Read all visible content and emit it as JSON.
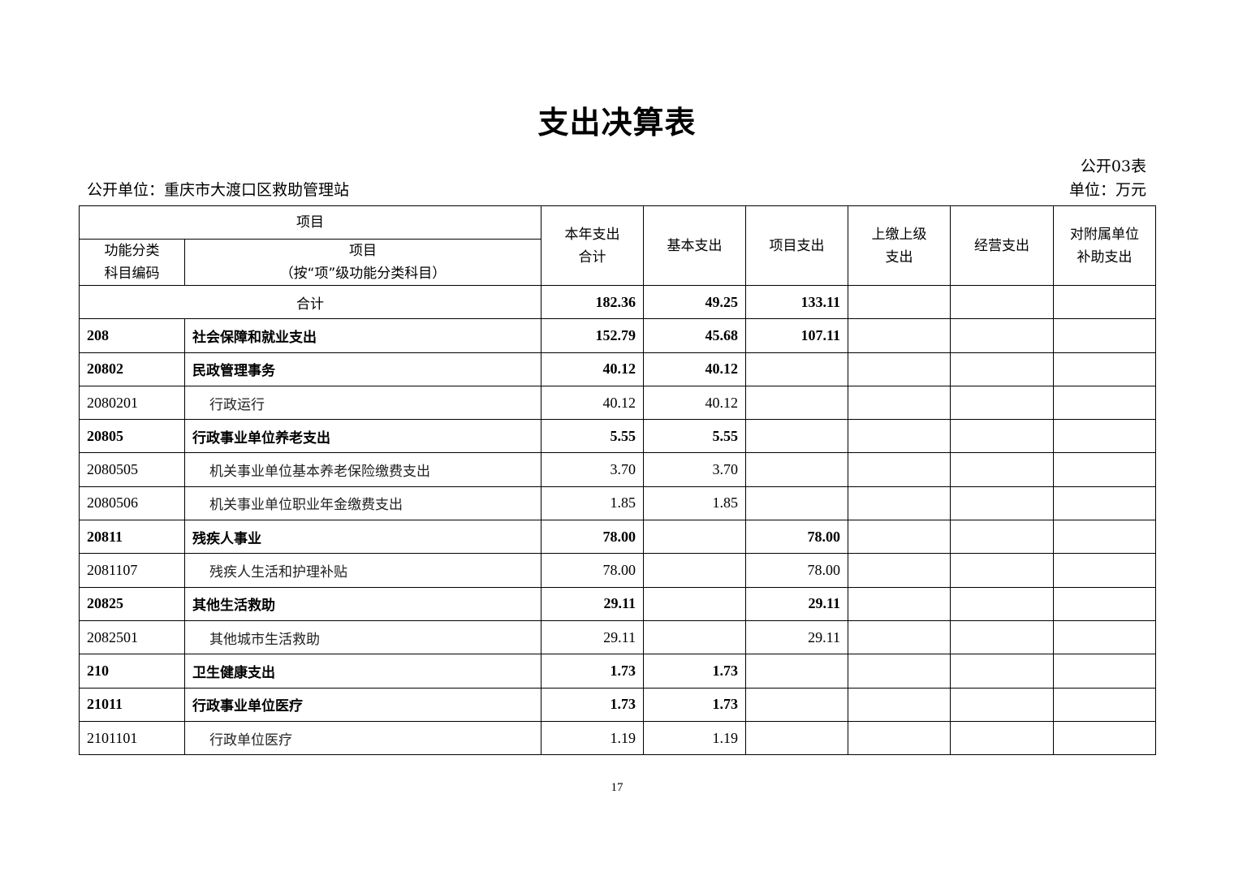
{
  "title": "支出决算表",
  "form_number": "公开03表",
  "unit_name": "公开单位：重庆市大渡口区救助管理站",
  "currency_unit": "单位：万元",
  "header": {
    "item": "项目",
    "code_col": [
      "功能分类",
      "科目编码"
    ],
    "name_col": [
      "项目",
      "（按“项”级功能分类科目）"
    ],
    "total": [
      "本年支出",
      "合计"
    ],
    "basic": "基本支出",
    "project": "项目支出",
    "upper": [
      "上缴上级",
      "支出"
    ],
    "business": "经营支出",
    "subsidy": [
      "对附属单位",
      "补助支出"
    ]
  },
  "total_row": {
    "label": "合计",
    "total": "182.36",
    "basic": "49.25",
    "project": "133.11",
    "upper": "",
    "business": "",
    "subsidy": ""
  },
  "rows": [
    {
      "code": "208",
      "name": "社会保障和就业支出",
      "total": "152.79",
      "basic": "45.68",
      "project": "107.11",
      "upper": "",
      "business": "",
      "subsidy": "",
      "bold": true
    },
    {
      "code": "20802",
      "name": "民政管理事务",
      "total": "40.12",
      "basic": "40.12",
      "project": "",
      "upper": "",
      "business": "",
      "subsidy": "",
      "bold": true
    },
    {
      "code": "2080201",
      "name": "行政运行",
      "total": "40.12",
      "basic": "40.12",
      "project": "",
      "upper": "",
      "business": "",
      "subsidy": "",
      "bold": false
    },
    {
      "code": "20805",
      "name": "行政事业单位养老支出",
      "total": "5.55",
      "basic": "5.55",
      "project": "",
      "upper": "",
      "business": "",
      "subsidy": "",
      "bold": true
    },
    {
      "code": "2080505",
      "name": "机关事业单位基本养老保险缴费支出",
      "total": "3.70",
      "basic": "3.70",
      "project": "",
      "upper": "",
      "business": "",
      "subsidy": "",
      "bold": false
    },
    {
      "code": "2080506",
      "name": "机关事业单位职业年金缴费支出",
      "total": "1.85",
      "basic": "1.85",
      "project": "",
      "upper": "",
      "business": "",
      "subsidy": "",
      "bold": false
    },
    {
      "code": "20811",
      "name": "残疾人事业",
      "total": "78.00",
      "basic": "",
      "project": "78.00",
      "upper": "",
      "business": "",
      "subsidy": "",
      "bold": true
    },
    {
      "code": "2081107",
      "name": "残疾人生活和护理补贴",
      "total": "78.00",
      "basic": "",
      "project": "78.00",
      "upper": "",
      "business": "",
      "subsidy": "",
      "bold": false
    },
    {
      "code": "20825",
      "name": "其他生活救助",
      "total": "29.11",
      "basic": "",
      "project": "29.11",
      "upper": "",
      "business": "",
      "subsidy": "",
      "bold": true
    },
    {
      "code": "2082501",
      "name": "其他城市生活救助",
      "total": "29.11",
      "basic": "",
      "project": "29.11",
      "upper": "",
      "business": "",
      "subsidy": "",
      "bold": false
    },
    {
      "code": "210",
      "name": "卫生健康支出",
      "total": "1.73",
      "basic": "1.73",
      "project": "",
      "upper": "",
      "business": "",
      "subsidy": "",
      "bold": true
    },
    {
      "code": "21011",
      "name": "行政事业单位医疗",
      "total": "1.73",
      "basic": "1.73",
      "project": "",
      "upper": "",
      "business": "",
      "subsidy": "",
      "bold": true
    },
    {
      "code": "2101101",
      "name": "行政单位医疗",
      "total": "1.19",
      "basic": "1.19",
      "project": "",
      "upper": "",
      "business": "",
      "subsidy": "",
      "bold": false
    }
  ],
  "page_number": "17"
}
